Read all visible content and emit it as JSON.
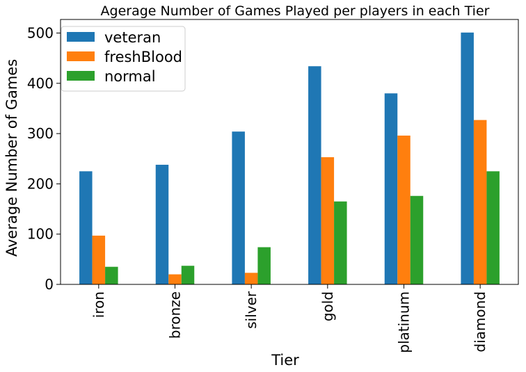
{
  "chart_data": {
    "type": "bar",
    "title": "Agerage Number of Games Played per players in each Tier",
    "xlabel": "Tier",
    "ylabel": "Average Number of Games",
    "categories": [
      "iron",
      "bronze",
      "silver",
      "gold",
      "platinum",
      "diamond"
    ],
    "series": [
      {
        "name": "veteran",
        "color": "#1f77b4",
        "values": [
          225,
          238,
          304,
          434,
          380,
          501
        ]
      },
      {
        "name": "freshBlood",
        "color": "#ff7f0e",
        "values": [
          97,
          20,
          23,
          253,
          296,
          327
        ]
      },
      {
        "name": "normal",
        "color": "#2ca02c",
        "values": [
          35,
          37,
          74,
          165,
          176,
          225
        ]
      }
    ],
    "ylim": [
      0,
      527
    ],
    "yticks": [
      0,
      100,
      200,
      300,
      400,
      500
    ],
    "grid": false,
    "legend_position": "top-left"
  }
}
